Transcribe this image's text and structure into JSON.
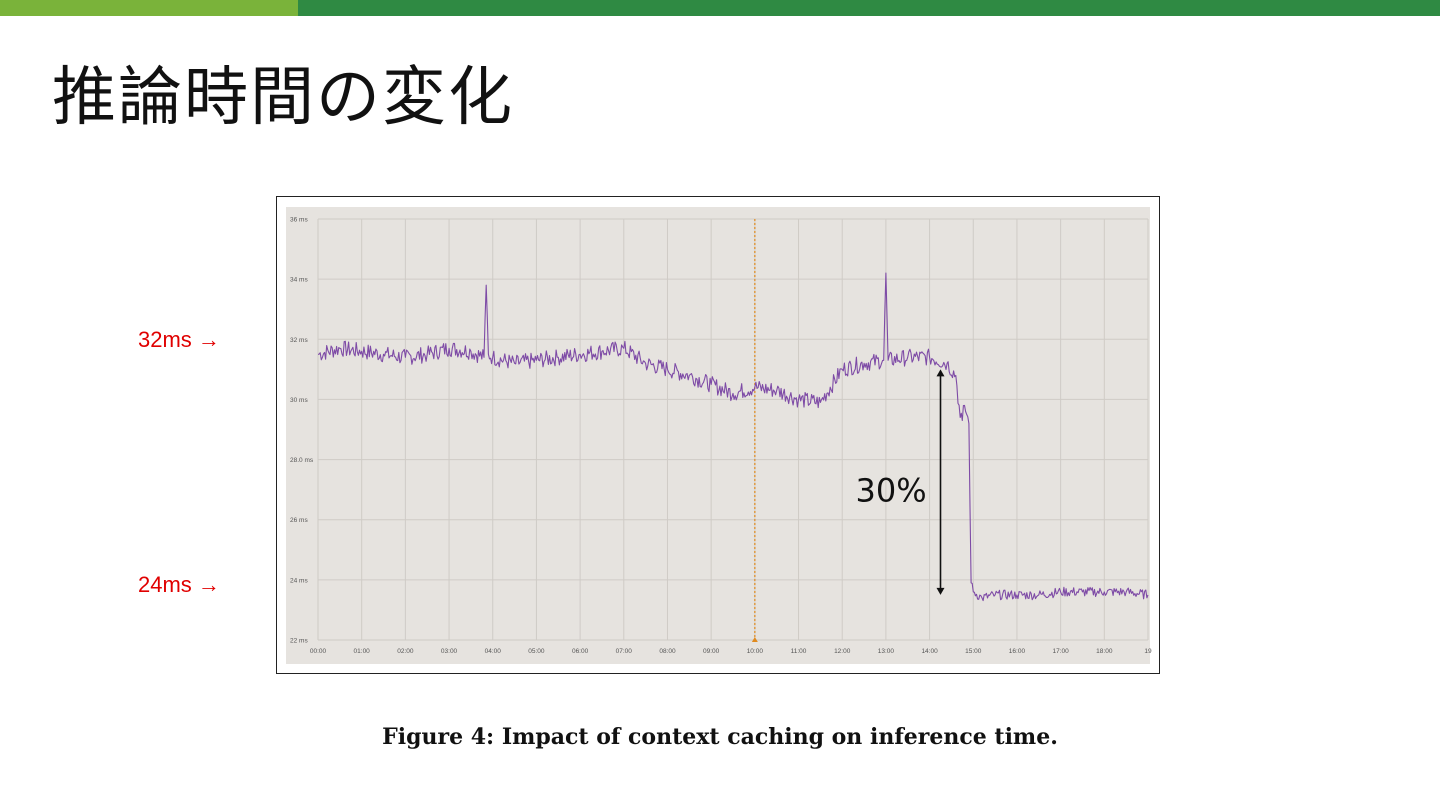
{
  "slide": {
    "title": "推論時間の変化",
    "caption": "Figure 4: Impact of context caching on inference time.",
    "side_labels": [
      {
        "text": "32ms →",
        "value_ms": 32
      },
      {
        "text": "24ms →",
        "value_ms": 24
      }
    ],
    "annotation": {
      "text": "30%",
      "arrow_from_ms": 31.0,
      "arrow_to_ms": 23.5,
      "at_x": "14:15"
    }
  },
  "colors": {
    "bar_light": "#7ab33a",
    "bar_dark": "#2f8a43",
    "series": "#7e4ba6",
    "marker": "#e08a1e",
    "plot_bg": "#e6e3df",
    "grid": "#cfcbc6",
    "side_label": "#e00000"
  },
  "chart_data": {
    "type": "line",
    "x_tick_labels": [
      "00:00",
      "01:00",
      "02:00",
      "03:00",
      "04:00",
      "05:00",
      "06:00",
      "07:00",
      "08:00",
      "09:00",
      "10:00",
      "11:00",
      "12:00",
      "13:00",
      "14:00",
      "15:00",
      "16:00",
      "17:00",
      "18:00",
      "19"
    ],
    "y_tick_labels": [
      "22 ms",
      "24 ms",
      "26 ms",
      "28.0 ms",
      "30 ms",
      "32 ms",
      "34 ms",
      "36 ms"
    ],
    "y_ticks": [
      22,
      24,
      26,
      28,
      30,
      32,
      34,
      36
    ],
    "ylim": [
      22,
      36
    ],
    "xlim_hours": [
      0,
      19
    ],
    "x_units": "hours",
    "vertical_marker_x": 10,
    "grid": true,
    "series": [
      {
        "color": "#7e4ba6",
        "x": [
          0,
          0.5,
          1,
          1.5,
          2,
          2.5,
          3,
          3.5,
          3.8,
          3.85,
          3.9,
          4,
          4.5,
          5,
          5.5,
          6,
          6.5,
          7,
          7.5,
          8,
          8.5,
          9,
          9.5,
          10,
          10.5,
          11,
          11.5,
          12,
          12.5,
          12.95,
          13,
          13.05,
          13.5,
          14,
          14.4,
          14.6,
          14.7,
          14.75,
          14.8,
          14.9,
          14.95,
          15,
          15.2,
          15.5,
          16,
          16.5,
          17,
          17.5,
          18,
          18.5,
          19
        ],
        "y": [
          31.5,
          31.7,
          31.6,
          31.5,
          31.4,
          31.5,
          31.7,
          31.6,
          31.4,
          33.8,
          31.5,
          31.4,
          31.2,
          31.3,
          31.4,
          31.5,
          31.6,
          31.7,
          31.2,
          31.0,
          30.8,
          30.5,
          30.2,
          30.4,
          30.3,
          30.0,
          29.9,
          31.0,
          31.2,
          31.3,
          34.2,
          31.3,
          31.4,
          31.4,
          31.2,
          30.8,
          29.4,
          29.3,
          29.8,
          29.2,
          23.9,
          23.6,
          23.4,
          23.5,
          23.5,
          23.5,
          23.6,
          23.6,
          23.6,
          23.6,
          23.5
        ]
      }
    ]
  }
}
